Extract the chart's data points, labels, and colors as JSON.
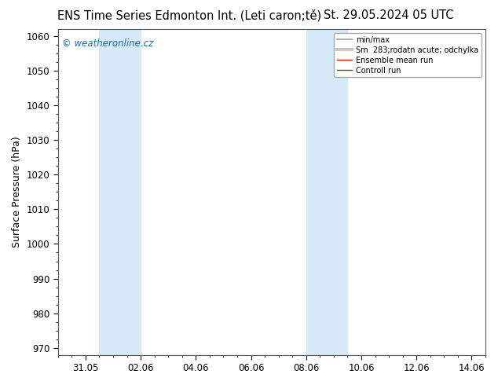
{
  "title_left": "ENS Time Series Edmonton Int. (Leti caron;tě)",
  "title_right": "St. 29.05.2024 05 UTC",
  "ylabel": "Surface Pressure (hPa)",
  "ylim": [
    968,
    1062
  ],
  "yticks": [
    970,
    980,
    990,
    1000,
    1010,
    1020,
    1030,
    1040,
    1050,
    1060
  ],
  "xtick_positions": [
    1,
    3,
    5,
    7,
    9,
    11,
    13,
    15
  ],
  "xtick_labels": [
    "31.05",
    "02.06",
    "04.06",
    "06.06",
    "08.06",
    "10.06",
    "12.06",
    "14.06"
  ],
  "xlim": [
    0,
    15.5
  ],
  "shade_bands": [
    {
      "xmin": 1.5,
      "xmax": 3.0
    },
    {
      "xmin": 9.0,
      "xmax": 10.5
    }
  ],
  "shade_color": "#d6eaf8",
  "watermark": "© weatheronline.cz",
  "legend_labels": [
    "min/max",
    "Sm  283;rodatn acute; odchylka",
    "Ensemble mean run",
    "Controll run"
  ],
  "legend_colors": [
    "#b0b0b0",
    "#c8c8c8",
    "#ff0000",
    "#008000"
  ],
  "bg_color": "#ffffff",
  "plot_bg_color": "#ffffff",
  "border_color": "#555555",
  "title_fontsize": 10.5,
  "axis_label_fontsize": 9,
  "tick_fontsize": 8.5,
  "watermark_fontsize": 8.5,
  "watermark_color": "#1a6cb5",
  "fig_width": 6.34,
  "fig_height": 4.9,
  "dpi": 100
}
